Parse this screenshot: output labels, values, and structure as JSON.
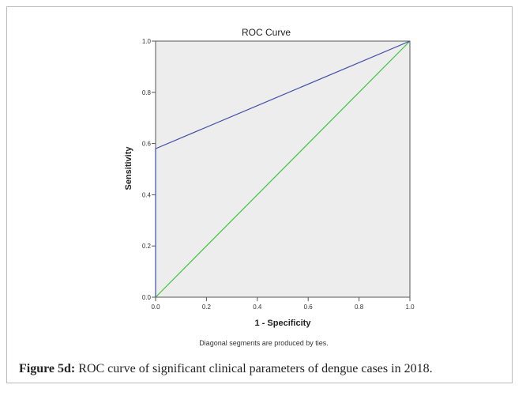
{
  "chart_data": {
    "type": "line",
    "title": "ROC Curve",
    "xlabel": "1 - Specificity",
    "ylabel": "Sensitivity",
    "xlim": [
      0,
      1
    ],
    "ylim": [
      0,
      1
    ],
    "xticks": [
      "0.0",
      "0.2",
      "0.4",
      "0.6",
      "0.8",
      "1.0"
    ],
    "yticks": [
      "0.0",
      "0.2",
      "0.4",
      "0.6",
      "0.8",
      "1.0"
    ],
    "grid": false,
    "series": [
      {
        "name": "",
        "color": "#3f4fa8",
        "points": [
          [
            0,
            0
          ],
          [
            0,
            0.58
          ],
          [
            1,
            1
          ]
        ]
      },
      {
        "name": "",
        "color": "#3cc43c",
        "points": [
          [
            0,
            0
          ],
          [
            1,
            1
          ]
        ]
      }
    ],
    "note": "Diagonal segments are produced by ties."
  },
  "caption": {
    "label": "Figure 5d:",
    "text": "ROC curve of significant clinical parameters of dengue cases in 2018."
  }
}
